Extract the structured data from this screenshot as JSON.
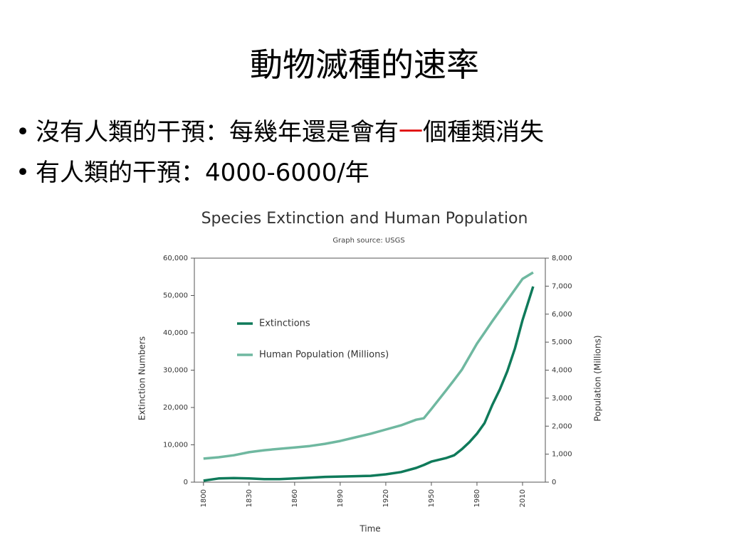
{
  "slide": {
    "title": "動物滅種的速率",
    "bullets": [
      {
        "parts": [
          {
            "text": "沒有人類的干預：每幾年還是會有"
          },
          {
            "text": "一",
            "color": "#e00000"
          },
          {
            "text": "個種類消失"
          }
        ]
      },
      {
        "parts": [
          {
            "text": "有人類的干預：4000-6000/年"
          }
        ]
      }
    ]
  },
  "chart_data": {
    "type": "line",
    "title": "Species Extinction and Human Population",
    "subtitle": "Graph source: USGS",
    "x_label": "Time",
    "y_label": "Extinction Numbers",
    "y2_label": "Population (Millions)",
    "x": [
      1800,
      1810,
      1820,
      1830,
      1840,
      1850,
      1860,
      1870,
      1880,
      1890,
      1900,
      1910,
      1920,
      1930,
      1940,
      1945,
      1950,
      1960,
      1965,
      1970,
      1975,
      1980,
      1985,
      1990,
      1995,
      2000,
      2005,
      2010,
      2017
    ],
    "series": [
      {
        "name": "Extinctions",
        "color": "#0f7a5a",
        "values": [
          400,
          1000,
          1100,
          1000,
          800,
          800,
          1000,
          1200,
          1400,
          1500,
          1600,
          1700,
          2100,
          2700,
          3800,
          4600,
          5500,
          6500,
          7200,
          8800,
          10700,
          13000,
          15800,
          20600,
          24800,
          29700,
          35800,
          43400,
          52400
        ]
      },
      {
        "name": "Human Population (Millions)",
        "color": "#6fb8a0",
        "axis": "y2",
        "values": [
          840,
          890,
          960,
          1070,
          1140,
          1190,
          1240,
          1290,
          1370,
          1470,
          1600,
          1730,
          1880,
          2030,
          2230,
          2280,
          2610,
          3300,
          3650,
          4010,
          4480,
          4950,
          5340,
          5740,
          6120,
          6500,
          6880,
          7260,
          7490
        ]
      }
    ],
    "xlim": [
      1794,
      2025
    ],
    "xticks": [
      1800,
      1830,
      1860,
      1890,
      1920,
      1950,
      1980,
      2010
    ],
    "ylim": [
      0,
      60000
    ],
    "yticks": [
      0,
      {
        "value": 10000,
        "label": "10,000"
      },
      {
        "value": 20000,
        "label": "20,000"
      },
      {
        "value": 30000,
        "label": "30,000"
      },
      {
        "value": 40000,
        "label": "40,000"
      },
      {
        "value": 50000,
        "label": "50,000"
      },
      {
        "value": 60000,
        "label": "60,000"
      }
    ],
    "y2lim": [
      0,
      8000
    ],
    "y2ticks": [
      0,
      {
        "value": 1000,
        "label": "1,000"
      },
      {
        "value": 2000,
        "label": "2,000"
      },
      {
        "value": 3000,
        "label": "3,000"
      },
      {
        "value": 4000,
        "label": "4,000"
      },
      {
        "value": 5000,
        "label": "5,000"
      },
      {
        "value": 6000,
        "label": "6,000"
      },
      {
        "value": 7000,
        "label": "7,000"
      },
      {
        "value": 8000,
        "label": "8,000"
      }
    ],
    "legend": "left"
  }
}
